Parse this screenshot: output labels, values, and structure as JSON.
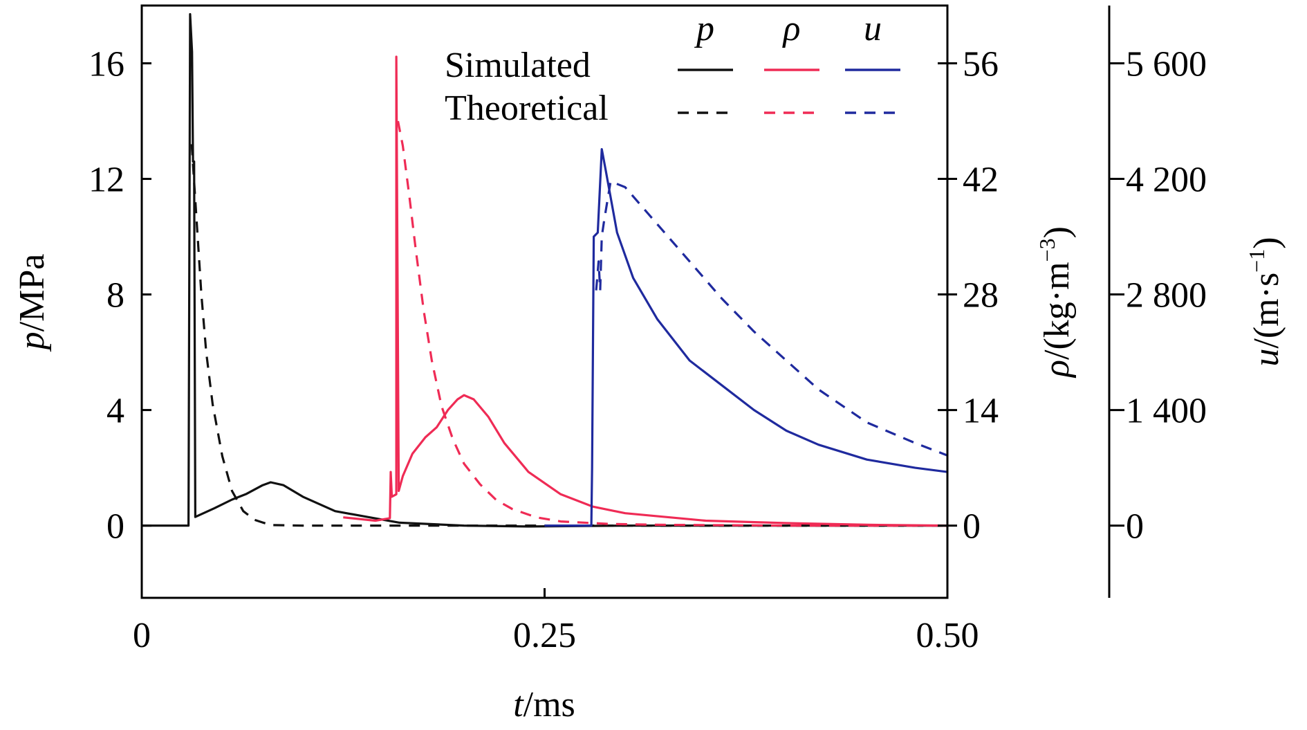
{
  "chart_data": {
    "type": "line",
    "x_axis": {
      "label_var": "t",
      "label_unit": "/ms",
      "range": [
        0,
        0.5
      ],
      "ticks": [
        0,
        0.25,
        0.5
      ],
      "tick_labels": [
        "0",
        "0.25",
        "0.50"
      ]
    },
    "y_axes": [
      {
        "id": "p",
        "label_var": "p",
        "label_unit": "/MPa",
        "range": [
          -2.5,
          18
        ],
        "ticks": [
          0,
          4,
          8,
          12,
          16
        ],
        "tick_labels": [
          "0",
          "4",
          "8",
          "12",
          "16"
        ]
      },
      {
        "id": "rho",
        "label_var": "ρ",
        "label_unit": "/(kg·m",
        "label_exp": "−3",
        "label_close": ")",
        "range": [
          -8.75,
          63
        ],
        "ticks": [
          0,
          14,
          28,
          42,
          56
        ],
        "tick_labels": [
          "0",
          "14",
          "28",
          "42",
          "56"
        ]
      },
      {
        "id": "u",
        "label_var": "u",
        "label_unit": "/(m·s",
        "label_exp": "−1",
        "label_close": ")",
        "range": [
          -875,
          6300
        ],
        "ticks": [
          0,
          1400,
          2800,
          4200,
          5600
        ],
        "tick_labels": [
          "0",
          "1 400",
          "2 800",
          "4 200",
          "5 600"
        ]
      }
    ],
    "legend": {
      "rows": [
        "Simulated",
        "Theoretical"
      ],
      "columns": [
        "p",
        "ρ",
        "u"
      ],
      "placement": "top-right"
    },
    "colors": {
      "p": "#111111",
      "rho": "#ef2b55",
      "u": "#1f2a9e"
    },
    "series": [
      {
        "name": "p",
        "kind": "Simulated",
        "axis": "p",
        "style": "solid",
        "points": [
          [
            0,
            0
          ],
          [
            0.029,
            0
          ],
          [
            0.03,
            17.7
          ],
          [
            0.0312,
            16.4
          ],
          [
            0.0318,
            12.6
          ],
          [
            0.0325,
            12.6
          ],
          [
            0.0332,
            0.3
          ],
          [
            0.045,
            0.6
          ],
          [
            0.056,
            0.9
          ],
          [
            0.065,
            1.1
          ],
          [
            0.075,
            1.4
          ],
          [
            0.08,
            1.5
          ],
          [
            0.088,
            1.4
          ],
          [
            0.1,
            1.0
          ],
          [
            0.12,
            0.5
          ],
          [
            0.14,
            0.3
          ],
          [
            0.16,
            0.1
          ],
          [
            0.2,
            0
          ],
          [
            0.24,
            -0.03
          ],
          [
            0.3,
            0
          ],
          [
            0.4,
            0
          ],
          [
            0.5,
            0
          ]
        ]
      },
      {
        "name": "p",
        "kind": "Theoretical",
        "axis": "p",
        "style": "dashed",
        "points": [
          [
            0.031,
            13.2
          ],
          [
            0.034,
            10.6
          ],
          [
            0.037,
            8.0
          ],
          [
            0.04,
            6.0
          ],
          [
            0.044,
            4.2
          ],
          [
            0.05,
            2.4
          ],
          [
            0.056,
            1.2
          ],
          [
            0.063,
            0.5
          ],
          [
            0.07,
            0.2
          ],
          [
            0.08,
            0.02
          ],
          [
            0.1,
            0
          ],
          [
            0.2,
            0
          ],
          [
            0.3,
            0
          ],
          [
            0.5,
            0
          ]
        ]
      },
      {
        "name": "ρ",
        "kind": "Simulated",
        "axis": "rho",
        "style": "solid",
        "points": [
          [
            0.125,
            1.0
          ],
          [
            0.145,
            0.6
          ],
          [
            0.154,
            0.9
          ],
          [
            0.1545,
            6.5
          ],
          [
            0.1552,
            3.5
          ],
          [
            0.158,
            3.8
          ],
          [
            0.158,
            56.8
          ],
          [
            0.1595,
            4.2
          ],
          [
            0.162,
            6.0
          ],
          [
            0.168,
            8.7
          ],
          [
            0.176,
            10.7
          ],
          [
            0.183,
            11.9
          ],
          [
            0.19,
            14.0
          ],
          [
            0.196,
            15.3
          ],
          [
            0.2,
            15.8
          ],
          [
            0.206,
            15.3
          ],
          [
            0.215,
            13.2
          ],
          [
            0.225,
            10.0
          ],
          [
            0.24,
            6.5
          ],
          [
            0.26,
            3.8
          ],
          [
            0.28,
            2.3
          ],
          [
            0.3,
            1.5
          ],
          [
            0.35,
            0.6
          ],
          [
            0.4,
            0.3
          ],
          [
            0.45,
            0.1
          ],
          [
            0.5,
            0
          ]
        ]
      },
      {
        "name": "ρ",
        "kind": "Theoretical",
        "axis": "rho",
        "style": "dashed",
        "points": [
          [
            0.159,
            49
          ],
          [
            0.162,
            46
          ],
          [
            0.166,
            40
          ],
          [
            0.17,
            33.5
          ],
          [
            0.175,
            26
          ],
          [
            0.18,
            20
          ],
          [
            0.186,
            14.5
          ],
          [
            0.193,
            10.5
          ],
          [
            0.2,
            7.5
          ],
          [
            0.21,
            5.0
          ],
          [
            0.22,
            3.1
          ],
          [
            0.23,
            2.0
          ],
          [
            0.245,
            1.0
          ],
          [
            0.26,
            0.5
          ],
          [
            0.29,
            0.2
          ],
          [
            0.32,
            0.1
          ],
          [
            0.4,
            0
          ],
          [
            0.5,
            0
          ]
        ]
      },
      {
        "name": "u",
        "kind": "Simulated",
        "axis": "u",
        "style": "solid",
        "points": [
          [
            0.25,
            0
          ],
          [
            0.279,
            0
          ],
          [
            0.2795,
            700
          ],
          [
            0.2805,
            3500
          ],
          [
            0.283,
            3550
          ],
          [
            0.2855,
            4560
          ],
          [
            0.288,
            4300
          ],
          [
            0.295,
            3550
          ],
          [
            0.305,
            3000
          ],
          [
            0.32,
            2500
          ],
          [
            0.34,
            2000
          ],
          [
            0.36,
            1700
          ],
          [
            0.38,
            1400
          ],
          [
            0.4,
            1150
          ],
          [
            0.42,
            980
          ],
          [
            0.45,
            800
          ],
          [
            0.48,
            700
          ],
          [
            0.5,
            650
          ]
        ]
      },
      {
        "name": "u",
        "kind": "Theoretical",
        "axis": "u",
        "style": "dashed",
        "points": [
          [
            0.282,
            2850
          ],
          [
            0.2835,
            3200
          ],
          [
            0.2845,
            2850
          ],
          [
            0.2855,
            3500
          ],
          [
            0.287,
            3700
          ],
          [
            0.291,
            4170
          ],
          [
            0.3,
            4100
          ],
          [
            0.32,
            3650
          ],
          [
            0.34,
            3200
          ],
          [
            0.36,
            2750
          ],
          [
            0.38,
            2350
          ],
          [
            0.4,
            2000
          ],
          [
            0.42,
            1650
          ],
          [
            0.45,
            1250
          ],
          [
            0.48,
            1000
          ],
          [
            0.5,
            850
          ]
        ]
      }
    ]
  }
}
